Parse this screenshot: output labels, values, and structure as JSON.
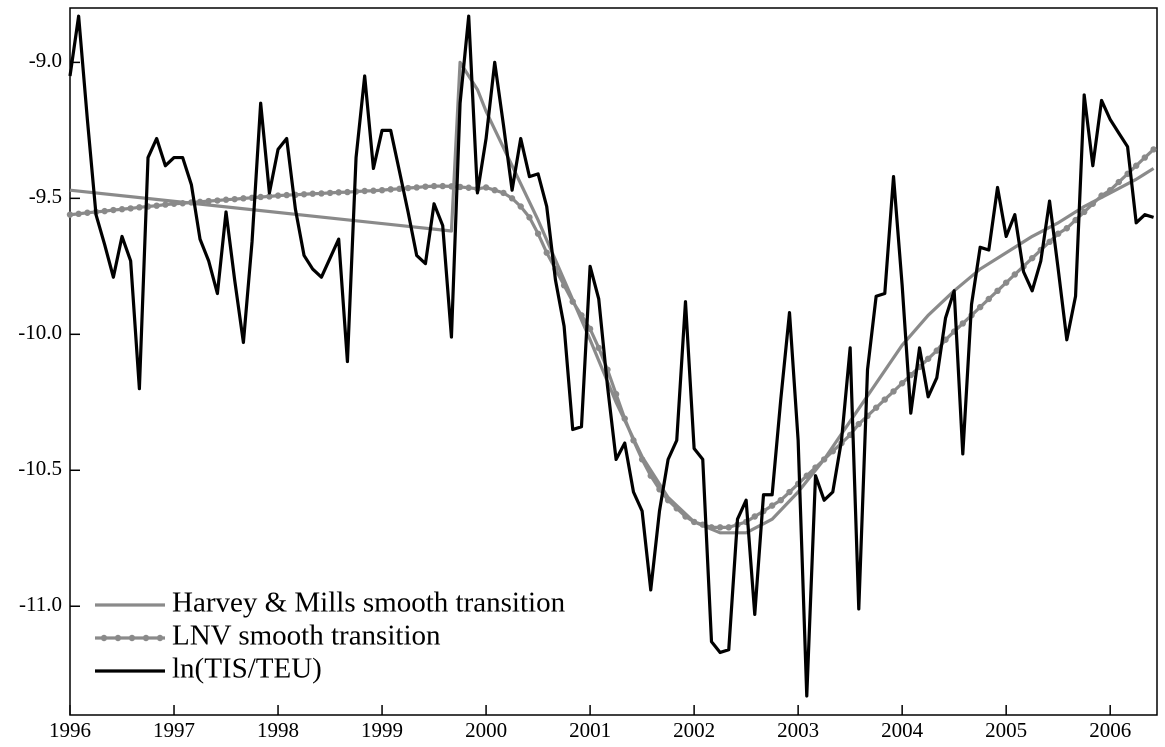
{
  "chart_data": {
    "type": "line",
    "x": [
      1996.0,
      1996.083,
      1996.167,
      1996.25,
      1996.333,
      1996.417,
      1996.5,
      1996.583,
      1996.667,
      1996.75,
      1996.833,
      1996.917,
      1997.0,
      1997.083,
      1997.167,
      1997.25,
      1997.333,
      1997.417,
      1997.5,
      1997.583,
      1997.667,
      1997.75,
      1997.833,
      1997.917,
      1998.0,
      1998.083,
      1998.167,
      1998.25,
      1998.333,
      1998.417,
      1998.5,
      1998.583,
      1998.667,
      1998.75,
      1998.833,
      1998.917,
      1999.0,
      1999.083,
      1999.167,
      1999.25,
      1999.333,
      1999.417,
      1999.5,
      1999.583,
      1999.667,
      1999.75,
      1999.833,
      1999.917,
      2000.0,
      2000.083,
      2000.167,
      2000.25,
      2000.333,
      2000.417,
      2000.5,
      2000.583,
      2000.667,
      2000.75,
      2000.833,
      2000.917,
      2001.0,
      2001.083,
      2001.167,
      2001.25,
      2001.333,
      2001.417,
      2001.5,
      2001.583,
      2001.667,
      2001.75,
      2001.833,
      2001.917,
      2002.0,
      2002.083,
      2002.167,
      2002.25,
      2002.333,
      2002.417,
      2002.5,
      2002.583,
      2002.667,
      2002.75,
      2002.833,
      2002.917,
      2003.0,
      2003.083,
      2003.167,
      2003.25,
      2003.333,
      2003.417,
      2003.5,
      2003.583,
      2003.667,
      2003.75,
      2003.833,
      2003.917,
      2004.0,
      2004.083,
      2004.167,
      2004.25,
      2004.333,
      2004.417,
      2004.5,
      2004.583,
      2004.667,
      2004.75,
      2004.833,
      2004.917,
      2005.0,
      2005.083,
      2005.167,
      2005.25,
      2005.333,
      2005.417,
      2005.5,
      2005.583,
      2005.667,
      2005.75,
      2005.833,
      2005.917,
      2006.0,
      2006.083,
      2006.167,
      2006.25,
      2006.333,
      2006.417
    ],
    "series": [
      {
        "name": "Harvey & Mills smooth transition",
        "color": "#8a8a8a",
        "marker": false,
        "x": [
          1996.0,
          1999.667,
          1999.75,
          1999.917,
          2000.0,
          2000.25,
          2000.5,
          2000.75,
          2001.0,
          2001.25,
          2001.5,
          2001.75,
          2002.0,
          2002.25,
          2002.5,
          2002.75,
          2003.0,
          2003.25,
          2003.5,
          2003.75,
          2004.0,
          2004.25,
          2004.5,
          2004.75,
          2005.0,
          2005.25,
          2005.5,
          2005.75,
          2006.0,
          2006.25,
          2006.417
        ],
        "values": [
          -9.47,
          -9.62,
          -9.0,
          -9.1,
          -9.18,
          -9.38,
          -9.58,
          -9.8,
          -10.02,
          -10.25,
          -10.45,
          -10.6,
          -10.69,
          -10.73,
          -10.73,
          -10.68,
          -10.58,
          -10.46,
          -10.32,
          -10.18,
          -10.04,
          -9.93,
          -9.84,
          -9.76,
          -9.7,
          -9.64,
          -9.59,
          -9.53,
          -9.48,
          -9.43,
          -9.39
        ]
      },
      {
        "name": "LNV smooth transition",
        "color": "#8a8a8a",
        "marker": true,
        "values": [
          -9.56,
          -9.557,
          -9.553,
          -9.55,
          -9.547,
          -9.543,
          -9.54,
          -9.537,
          -9.533,
          -9.53,
          -9.527,
          -9.523,
          -9.52,
          -9.518,
          -9.515,
          -9.513,
          -9.51,
          -9.508,
          -9.505,
          -9.503,
          -9.5,
          -9.498,
          -9.495,
          -9.493,
          -9.49,
          -9.488,
          -9.487,
          -9.485,
          -9.483,
          -9.482,
          -9.48,
          -9.478,
          -9.477,
          -9.475,
          -9.473,
          -9.472,
          -9.47,
          -9.467,
          -9.465,
          -9.462,
          -9.46,
          -9.457,
          -9.455,
          -9.455,
          -9.456,
          -9.458,
          -9.461,
          -9.465,
          -9.46,
          -9.47,
          -9.48,
          -9.5,
          -9.53,
          -9.57,
          -9.63,
          -9.7,
          -9.76,
          -9.82,
          -9.88,
          -9.93,
          -9.98,
          -10.05,
          -10.13,
          -10.22,
          -10.31,
          -10.39,
          -10.46,
          -10.52,
          -10.57,
          -10.61,
          -10.64,
          -10.67,
          -10.69,
          -10.7,
          -10.71,
          -10.71,
          -10.71,
          -10.7,
          -10.69,
          -10.67,
          -10.65,
          -10.63,
          -10.61,
          -10.58,
          -10.55,
          -10.52,
          -10.49,
          -10.46,
          -10.43,
          -10.4,
          -10.37,
          -10.33,
          -10.3,
          -10.27,
          -10.24,
          -10.21,
          -10.18,
          -10.15,
          -10.12,
          -10.09,
          -10.06,
          -10.02,
          -9.99,
          -9.96,
          -9.93,
          -9.9,
          -9.87,
          -9.84,
          -9.81,
          -9.78,
          -9.75,
          -9.72,
          -9.69,
          -9.66,
          -9.63,
          -9.61,
          -9.58,
          -9.55,
          -9.52,
          -9.49,
          -9.47,
          -9.44,
          -9.41,
          -9.38,
          -9.35,
          -9.32
        ]
      },
      {
        "name": "ln(TIS/TEU)",
        "color": "#000000",
        "marker": false,
        "values": [
          -9.05,
          -8.83,
          -9.21,
          -9.56,
          -9.67,
          -9.79,
          -9.64,
          -9.73,
          -10.2,
          -9.35,
          -9.28,
          -9.38,
          -9.35,
          -9.35,
          -9.45,
          -9.65,
          -9.73,
          -9.85,
          -9.55,
          -9.8,
          -10.03,
          -9.66,
          -9.15,
          -9.48,
          -9.32,
          -9.28,
          -9.54,
          -9.71,
          -9.76,
          -9.79,
          -9.72,
          -9.65,
          -10.1,
          -9.35,
          -9.05,
          -9.39,
          -9.25,
          -9.25,
          -9.4,
          -9.55,
          -9.71,
          -9.74,
          -9.52,
          -9.6,
          -10.01,
          -9.15,
          -8.83,
          -9.48,
          -9.28,
          -9.0,
          -9.23,
          -9.47,
          -9.28,
          -9.42,
          -9.41,
          -9.53,
          -9.8,
          -9.97,
          -10.35,
          -10.34,
          -9.75,
          -9.87,
          -10.19,
          -10.46,
          -10.4,
          -10.58,
          -10.65,
          -10.94,
          -10.65,
          -10.46,
          -10.39,
          -9.88,
          -10.42,
          -10.46,
          -11.13,
          -11.17,
          -11.16,
          -10.68,
          -10.61,
          -11.03,
          -10.59,
          -10.59,
          -10.24,
          -9.92,
          -10.39,
          -11.33,
          -10.52,
          -10.61,
          -10.58,
          -10.39,
          -10.05,
          -11.01,
          -10.13,
          -9.86,
          -9.85,
          -9.42,
          -9.82,
          -10.29,
          -10.05,
          -10.23,
          -10.16,
          -9.94,
          -9.84,
          -10.44,
          -9.89,
          -9.68,
          -9.69,
          -9.46,
          -9.64,
          -9.56,
          -9.77,
          -9.84,
          -9.73,
          -9.51,
          -9.76,
          -10.02,
          -9.86,
          -9.12,
          -9.38,
          -9.14,
          -9.21,
          -9.26,
          -9.31,
          -9.59,
          -9.56,
          -9.57
        ]
      }
    ],
    "xlim": [
      1996.0,
      2006.45
    ],
    "xticks": [
      1996,
      1997,
      1998,
      1999,
      2000,
      2001,
      2002,
      2003,
      2004,
      2005,
      2006
    ],
    "ylim": [
      -11.4,
      -8.8
    ],
    "yticks": [
      {
        "value": -9.0,
        "label": "-9.0"
      },
      -9.5,
      {
        "value": -10.0,
        "label": "-10.0"
      },
      -10.5,
      {
        "value": -11.0,
        "label": "-11.0"
      }
    ],
    "legend": "lower left"
  }
}
